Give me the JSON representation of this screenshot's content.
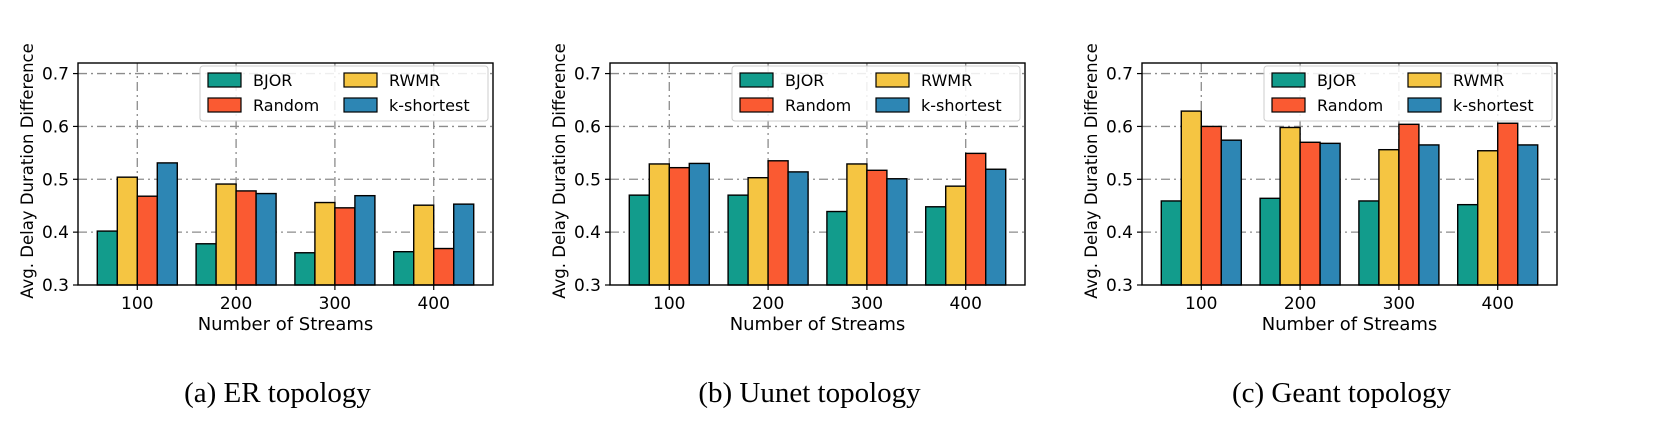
{
  "colors": {
    "BJOR": "#129c8c",
    "RWMR": "#f5c542",
    "Random": "#fa5a32",
    "k-shortest": "#2d86b4"
  },
  "chart_data": [
    {
      "type": "bar",
      "caption": "(a) ER topology",
      "xlabel": "Number of Streams",
      "ylabel": "Avg. Delay Duration Difference",
      "categories": [
        "100",
        "200",
        "300",
        "400"
      ],
      "ylim": [
        0.3,
        0.72
      ],
      "yticks": [
        "0.3",
        "0.4",
        "0.5",
        "0.6",
        "0.7"
      ],
      "grid": true,
      "legend_position": "top-right",
      "series": [
        {
          "name": "BJOR",
          "values": [
            0.402,
            0.378,
            0.361,
            0.363
          ]
        },
        {
          "name": "RWMR",
          "values": [
            0.504,
            0.491,
            0.456,
            0.451
          ]
        },
        {
          "name": "Random",
          "values": [
            0.468,
            0.478,
            0.446,
            0.369
          ]
        },
        {
          "name": "k-shortest",
          "values": [
            0.531,
            0.473,
            0.469,
            0.453
          ]
        }
      ]
    },
    {
      "type": "bar",
      "caption": "(b) Uunet topology",
      "xlabel": "Number of Streams",
      "ylabel": "Avg. Delay Duration Difference",
      "categories": [
        "100",
        "200",
        "300",
        "400"
      ],
      "ylim": [
        0.3,
        0.72
      ],
      "yticks": [
        "0.3",
        "0.4",
        "0.5",
        "0.6",
        "0.7"
      ],
      "grid": true,
      "legend_position": "top-right",
      "series": [
        {
          "name": "BJOR",
          "values": [
            0.47,
            0.47,
            0.439,
            0.448
          ]
        },
        {
          "name": "RWMR",
          "values": [
            0.529,
            0.503,
            0.529,
            0.487
          ]
        },
        {
          "name": "Random",
          "values": [
            0.522,
            0.535,
            0.517,
            0.549
          ]
        },
        {
          "name": "k-shortest",
          "values": [
            0.53,
            0.514,
            0.501,
            0.519
          ]
        }
      ]
    },
    {
      "type": "bar",
      "caption": "(c) Geant topology",
      "xlabel": "Number of Streams",
      "ylabel": "Avg. Delay Duration Difference",
      "categories": [
        "100",
        "200",
        "300",
        "400"
      ],
      "ylim": [
        0.3,
        0.72
      ],
      "yticks": [
        "0.3",
        "0.4",
        "0.5",
        "0.6",
        "0.7"
      ],
      "grid": true,
      "legend_position": "top-right",
      "series": [
        {
          "name": "BJOR",
          "values": [
            0.459,
            0.464,
            0.459,
            0.452
          ]
        },
        {
          "name": "RWMR",
          "values": [
            0.629,
            0.598,
            0.556,
            0.554
          ]
        },
        {
          "name": "Random",
          "values": [
            0.6,
            0.57,
            0.604,
            0.606
          ]
        },
        {
          "name": "k-shortest",
          "values": [
            0.574,
            0.568,
            0.565,
            0.565
          ]
        }
      ]
    }
  ]
}
